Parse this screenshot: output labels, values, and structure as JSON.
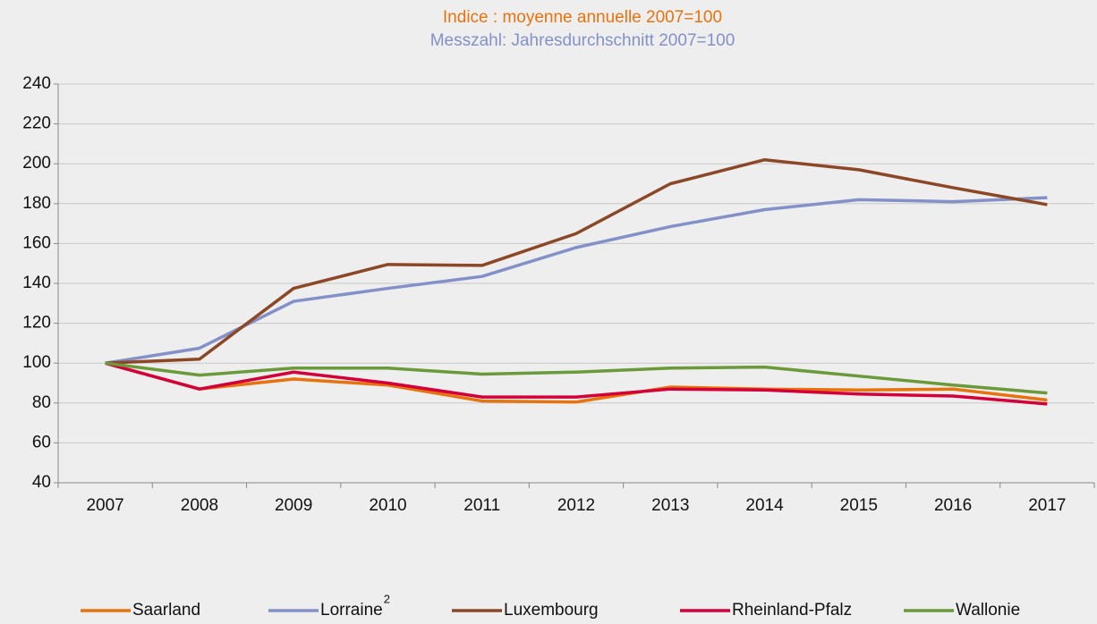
{
  "chart_data": {
    "type": "line",
    "title": "Indice : moyenne annuelle 2007=100",
    "title_color": "#e8720c",
    "subtitle": "Messzahl: Jahresdurchschnitt 2007=100",
    "subtitle_color": "#8391c8",
    "categories": [
      "2007",
      "2008",
      "2009",
      "2010",
      "2011",
      "2012",
      "2013",
      "2014",
      "2015",
      "2016",
      "2017"
    ],
    "series": [
      {
        "name": "Saarland",
        "color": "#e8720c",
        "values": [
          100,
          87,
          92,
          89,
          81,
          80.5,
          88,
          87,
          86.5,
          87,
          81.5
        ]
      },
      {
        "name": "Lorraine",
        "name_superscript": "2",
        "color": "#8391c8",
        "values": [
          100,
          107.5,
          131,
          137.5,
          143.5,
          158,
          168.5,
          177,
          182,
          181,
          183
        ]
      },
      {
        "name": "Luxembourg",
        "color": "#8b4726",
        "values": [
          100,
          102,
          137.5,
          149.5,
          149,
          165,
          190,
          202,
          197,
          188,
          179.5
        ]
      },
      {
        "name": "Rheinland-Pfalz",
        "color": "#d4003a",
        "values": [
          100,
          87,
          95.5,
          90,
          83,
          83,
          87,
          86.5,
          84.5,
          83.5,
          79.5
        ]
      },
      {
        "name": "Wallonie",
        "color": "#6a9a3a",
        "values": [
          100,
          94,
          97.5,
          97.5,
          94.5,
          95.5,
          97.5,
          98,
          93.5,
          89,
          85
        ]
      }
    ],
    "ylim": [
      40,
      240
    ],
    "yticks": [
      40,
      60,
      80,
      100,
      120,
      140,
      160,
      180,
      200,
      220,
      240
    ],
    "grid": true,
    "legend": "bottom"
  }
}
